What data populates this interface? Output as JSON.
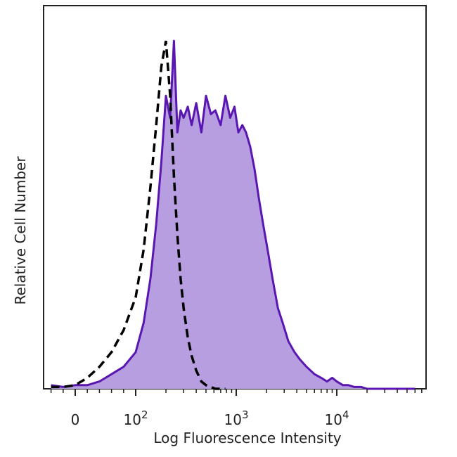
{
  "chart_data": {
    "type": "area",
    "title": "",
    "xlabel": "Log Fluorescence Intensity",
    "ylabel": "Relative Cell Number",
    "x_scale": "biexponential",
    "xlim": [
      -40,
      60000
    ],
    "ylim": [
      0,
      100
    ],
    "x_ticks": [
      {
        "value": 0,
        "base": "0",
        "exp": ""
      },
      {
        "value": 100,
        "base": "10",
        "exp": "2"
      },
      {
        "value": 1000,
        "base": "10",
        "exp": "3"
      },
      {
        "value": 10000,
        "base": "10",
        "exp": "4"
      }
    ],
    "grid": false,
    "legend": "none",
    "colors": {
      "stained_fill": "#b69ee0",
      "stained_line": "#5a16b0",
      "control_line": "#000000"
    },
    "series": [
      {
        "style": "filled-solid",
        "x": [
          -40,
          -20,
          0,
          20,
          40,
          60,
          80,
          100,
          120,
          140,
          160,
          180,
          200,
          220,
          240,
          260,
          280,
          300,
          330,
          360,
          400,
          450,
          500,
          560,
          620,
          700,
          780,
          870,
          960,
          1050,
          1150,
          1250,
          1380,
          1520,
          1680,
          1850,
          2050,
          2300,
          2600,
          2900,
          3300,
          3800,
          4300,
          5000,
          6000,
          7000,
          8000,
          9000,
          10000,
          11500,
          13000,
          15000,
          17500,
          20000,
          24000,
          30000,
          40000,
          60000
        ],
        "y": [
          1,
          0.5,
          1,
          1,
          2,
          4,
          6,
          10,
          18,
          30,
          45,
          62,
          80,
          74,
          95,
          70,
          76,
          74,
          77,
          72,
          78,
          70,
          80,
          75,
          76,
          72,
          80,
          74,
          77,
          70,
          72,
          70,
          66,
          60,
          52,
          45,
          38,
          30,
          22,
          18,
          13,
          10,
          8,
          6,
          4,
          3,
          2,
          3,
          2,
          1,
          1,
          0.5,
          0.5,
          0,
          0,
          0,
          0,
          0
        ]
      },
      {
        "style": "dashed",
        "x": [
          -40,
          -20,
          0,
          20,
          40,
          60,
          80,
          100,
          120,
          140,
          160,
          180,
          200,
          220,
          240,
          260,
          280,
          300,
          330,
          360,
          400,
          450,
          500,
          560,
          620,
          700,
          780
        ],
        "y": [
          0.5,
          0.5,
          1,
          3,
          6,
          10,
          16,
          25,
          38,
          55,
          72,
          88,
          95,
          80,
          58,
          42,
          30,
          22,
          14,
          9,
          5,
          2,
          1,
          0.5,
          0,
          0,
          0
        ]
      }
    ]
  }
}
